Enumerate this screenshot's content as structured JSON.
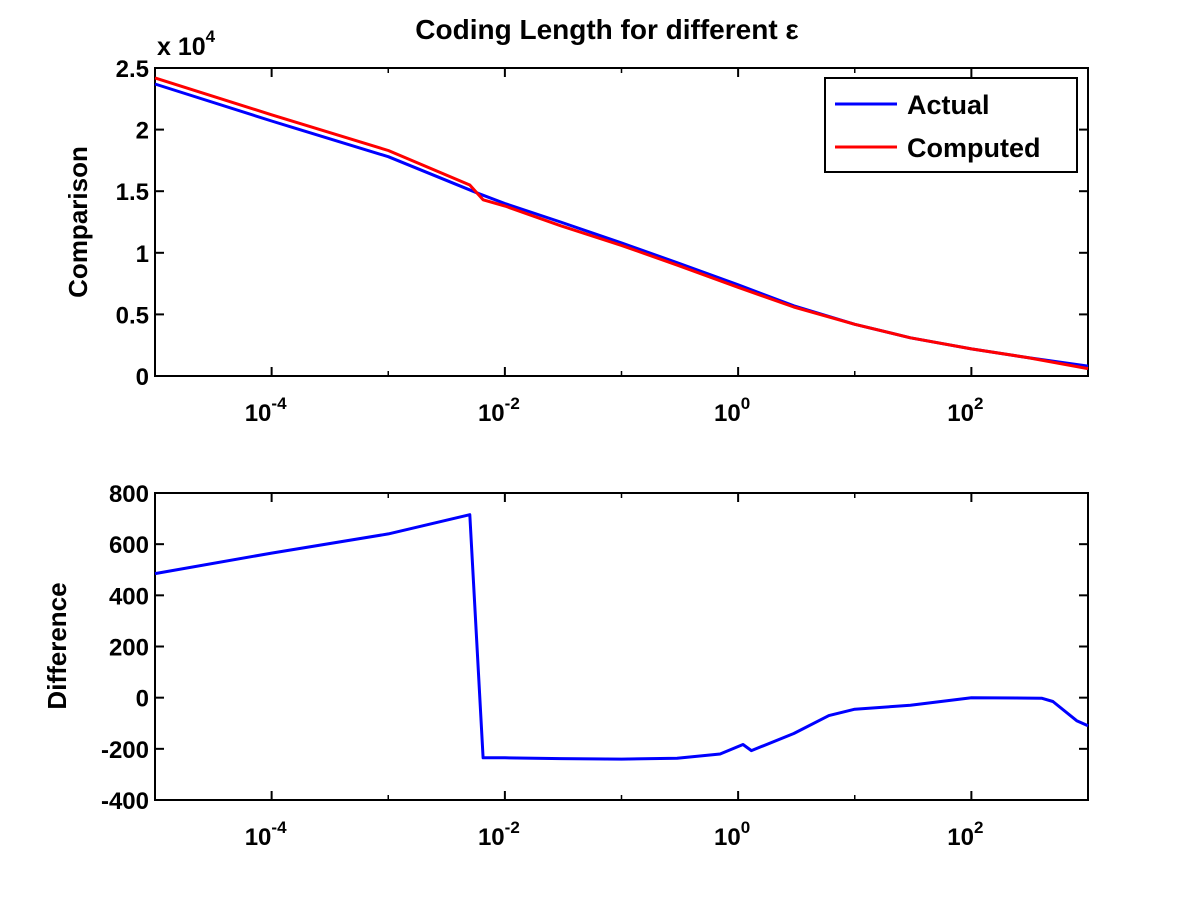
{
  "chart_data": [
    {
      "type": "line",
      "title": "Coding Length for different ε",
      "ylabel": "Comparison",
      "y_multiplier": "x 10",
      "y_multiplier_exp": "4",
      "x_scale": "log",
      "xlim": [
        1e-05,
        1000
      ],
      "ylim": [
        0,
        25000
      ],
      "x_ticks": [
        {
          "base": "10",
          "exp": "-4",
          "value": 0.0001
        },
        {
          "base": "10",
          "exp": "-2",
          "value": 0.01
        },
        {
          "base": "10",
          "exp": "0",
          "value": 1
        },
        {
          "base": "10",
          "exp": "2",
          "value": 100
        }
      ],
      "y_ticks": [
        {
          "label": "0",
          "value": 0
        },
        {
          "label": "0.5",
          "value": 5000
        },
        {
          "label": "1",
          "value": 10000
        },
        {
          "label": "1.5",
          "value": 15000
        },
        {
          "label": "2",
          "value": 20000
        },
        {
          "label": "2.5",
          "value": 25000
        }
      ],
      "legend_position": "top-right",
      "legend": [
        {
          "name": "Actual",
          "color": "#0000ff"
        },
        {
          "name": "Computed",
          "color": "#ff0000"
        }
      ],
      "series": [
        {
          "name": "Actual",
          "color": "#0000ff",
          "x": [
            1e-05,
            0.0001,
            0.001,
            0.006,
            0.01,
            0.03,
            0.1,
            0.3,
            1,
            3,
            10,
            30,
            100,
            300,
            1000
          ],
          "y": [
            23700,
            20700,
            17800,
            14800,
            14000,
            12500,
            10800,
            9200,
            7400,
            5700,
            4200,
            3100,
            2200,
            1500,
            800
          ]
        },
        {
          "name": "Computed",
          "color": "#ff0000",
          "x": [
            1e-05,
            0.0001,
            0.001,
            0.005,
            0.0065,
            0.01,
            0.03,
            0.1,
            0.3,
            1,
            3,
            10,
            30,
            100,
            300,
            1000
          ],
          "y": [
            24200,
            21200,
            18300,
            15500,
            14300,
            13800,
            12200,
            10600,
            9000,
            7200,
            5600,
            4200,
            3100,
            2200,
            1500,
            600
          ]
        }
      ]
    },
    {
      "type": "line",
      "ylabel": "Difference",
      "x_scale": "log",
      "xlim": [
        1e-05,
        1000
      ],
      "ylim": [
        -400,
        800
      ],
      "x_ticks": [
        {
          "base": "10",
          "exp": "-4",
          "value": 0.0001
        },
        {
          "base": "10",
          "exp": "-2",
          "value": 0.01
        },
        {
          "base": "10",
          "exp": "0",
          "value": 1
        },
        {
          "base": "10",
          "exp": "2",
          "value": 100
        }
      ],
      "y_ticks": [
        {
          "label": "-400",
          "value": -400
        },
        {
          "label": "-200",
          "value": -200
        },
        {
          "label": "0",
          "value": 0
        },
        {
          "label": "200",
          "value": 200
        },
        {
          "label": "400",
          "value": 400
        },
        {
          "label": "600",
          "value": 600
        },
        {
          "label": "800",
          "value": 800
        }
      ],
      "series": [
        {
          "color": "#0000ff",
          "x": [
            1e-05,
            0.0001,
            0.001,
            0.005,
            0.0065,
            0.01,
            0.03,
            0.1,
            0.3,
            0.7,
            1.1,
            1.3,
            3,
            6,
            10,
            30,
            100,
            400,
            500,
            800,
            1000
          ],
          "y": [
            485,
            565,
            640,
            715,
            -235,
            -235,
            -238,
            -240,
            -237,
            -220,
            -183,
            -207,
            -140,
            -70,
            -45,
            -30,
            0,
            -2,
            -15,
            -90,
            -110
          ]
        }
      ]
    }
  ]
}
